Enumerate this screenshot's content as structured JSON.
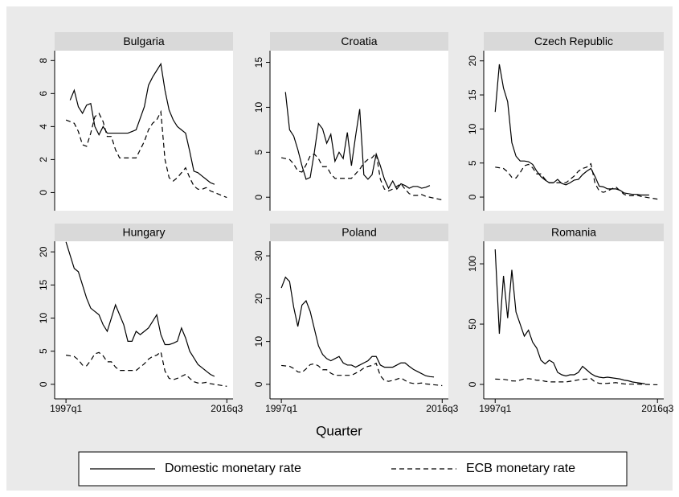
{
  "x_label": "Quarter",
  "chart_data": [
    {
      "type": "line",
      "title": "Bulgaria",
      "x": [
        148,
        150,
        152,
        154,
        156,
        158,
        160,
        162,
        164,
        166,
        168,
        170,
        172,
        174,
        176,
        178,
        180,
        182,
        184,
        186,
        188,
        190,
        192,
        194,
        196,
        198,
        200,
        202,
        204,
        206,
        208,
        210,
        212,
        214,
        216,
        218,
        220,
        222,
        224,
        226
      ],
      "xlim": [
        142.5,
        229
      ],
      "ylim": [
        -1.1,
        8.6
      ],
      "yticks": [
        0,
        2,
        4,
        6,
        8
      ],
      "series": [
        {
          "name": "Domestic monetary rate",
          "color": "#000000",
          "dash": "solid",
          "values": [
            null,
            5.6,
            6.2,
            5.2,
            4.8,
            5.3,
            5.4,
            4.0,
            3.5,
            4.0,
            3.6,
            3.6,
            3.6,
            3.6,
            3.6,
            3.6,
            3.7,
            3.8,
            4.5,
            5.2,
            6.5,
            7.0,
            7.4,
            7.8,
            6.2,
            5.0,
            4.4,
            4.0,
            3.8,
            3.6,
            2.5,
            1.3,
            1.2,
            1.0,
            0.8,
            0.6,
            0.5,
            null,
            null,
            null
          ]
        },
        {
          "name": "ECB monetary rate",
          "color": "#000000",
          "dash": "dashed",
          "values": [
            4.4,
            4.3,
            4.2,
            3.7,
            2.9,
            2.8,
            3.6,
            4.6,
            4.8,
            4.3,
            3.4,
            3.4,
            2.6,
            2.1,
            2.1,
            2.1,
            2.1,
            2.1,
            2.6,
            3.1,
            3.8,
            4.2,
            4.4,
            4.9,
            2.0,
            0.9,
            0.7,
            0.9,
            1.2,
            1.5,
            0.9,
            0.4,
            0.2,
            0.2,
            0.3,
            0.1,
            0.0,
            -0.1,
            -0.2,
            -0.3
          ]
        }
      ]
    },
    {
      "type": "line",
      "title": "Croatia",
      "x": [
        148,
        150,
        152,
        154,
        156,
        158,
        160,
        162,
        164,
        166,
        168,
        170,
        172,
        174,
        176,
        178,
        180,
        182,
        184,
        186,
        188,
        190,
        192,
        194,
        196,
        198,
        200,
        202,
        204,
        206,
        208,
        210,
        212,
        214,
        216,
        218,
        220,
        222,
        224,
        226
      ],
      "xlim": [
        142.5,
        229
      ],
      "ylim": [
        -1.5,
        16.3
      ],
      "yticks": [
        0,
        5,
        10,
        15
      ],
      "series": [
        {
          "name": "Domestic monetary rate",
          "color": "#000000",
          "dash": "solid",
          "values": [
            null,
            11.7,
            7.5,
            6.8,
            5.3,
            3.5,
            2.0,
            2.2,
            5.0,
            8.2,
            7.6,
            6.0,
            7.0,
            4.0,
            5.0,
            4.3,
            7.2,
            3.5,
            6.8,
            9.8,
            2.5,
            2.0,
            2.5,
            4.8,
            3.5,
            2.0,
            1.0,
            1.8,
            0.9,
            1.5,
            1.3,
            1.0,
            1.2,
            1.2,
            1.0,
            1.1,
            1.3,
            null,
            null,
            null
          ]
        },
        {
          "name": "ECB monetary rate",
          "color": "#000000",
          "dash": "dashed",
          "values": [
            4.4,
            4.3,
            4.2,
            3.7,
            2.9,
            2.8,
            3.6,
            4.6,
            4.8,
            4.3,
            3.4,
            3.4,
            2.6,
            2.1,
            2.1,
            2.1,
            2.1,
            2.1,
            2.6,
            3.1,
            3.8,
            4.2,
            4.4,
            4.9,
            2.0,
            0.9,
            0.7,
            0.9,
            1.2,
            1.5,
            0.9,
            0.4,
            0.2,
            0.2,
            0.3,
            0.1,
            0.0,
            -0.1,
            -0.2,
            -0.3
          ]
        }
      ]
    },
    {
      "type": "line",
      "title": "Czech Republic",
      "x": [
        148,
        150,
        152,
        154,
        156,
        158,
        160,
        162,
        164,
        166,
        168,
        170,
        172,
        174,
        176,
        178,
        180,
        182,
        184,
        186,
        188,
        190,
        192,
        194,
        196,
        198,
        200,
        202,
        204,
        206,
        208,
        210,
        212,
        214,
        216,
        218,
        220,
        222,
        224,
        226
      ],
      "xlim": [
        142.5,
        229
      ],
      "ylim": [
        -2.0,
        21.5
      ],
      "yticks": [
        0,
        5,
        10,
        15,
        20
      ],
      "series": [
        {
          "name": "Domestic monetary rate",
          "color": "#000000",
          "dash": "solid",
          "values": [
            12.5,
            19.5,
            16.0,
            14.0,
            8.0,
            6.0,
            5.3,
            5.3,
            5.2,
            4.8,
            3.8,
            3.0,
            2.5,
            2.1,
            2.1,
            2.6,
            2.0,
            1.8,
            2.1,
            2.5,
            2.6,
            3.3,
            3.8,
            4.2,
            3.0,
            1.6,
            1.5,
            1.2,
            1.2,
            1.2,
            1.0,
            0.6,
            0.5,
            0.4,
            0.4,
            0.3,
            0.3,
            0.3,
            null,
            null
          ]
        },
        {
          "name": "ECB monetary rate",
          "color": "#000000",
          "dash": "dashed",
          "values": [
            4.4,
            4.3,
            4.2,
            3.7,
            2.9,
            2.8,
            3.6,
            4.6,
            4.8,
            4.3,
            3.4,
            3.4,
            2.6,
            2.1,
            2.1,
            2.1,
            2.1,
            2.1,
            2.6,
            3.1,
            3.8,
            4.2,
            4.4,
            4.9,
            2.0,
            0.9,
            0.7,
            0.9,
            1.2,
            1.5,
            0.9,
            0.4,
            0.2,
            0.2,
            0.3,
            0.1,
            0.0,
            -0.1,
            -0.2,
            -0.3
          ]
        }
      ]
    },
    {
      "type": "line",
      "title": "Hungary",
      "x": [
        148,
        150,
        152,
        154,
        156,
        158,
        160,
        162,
        164,
        166,
        168,
        170,
        172,
        174,
        176,
        178,
        180,
        182,
        184,
        186,
        188,
        190,
        192,
        194,
        196,
        198,
        200,
        202,
        204,
        206,
        208,
        210,
        212,
        214,
        216,
        218,
        220,
        222,
        224,
        226
      ],
      "xlim": [
        142.5,
        229
      ],
      "xticks": [
        {
          "value": 148,
          "label": "1997q1"
        },
        {
          "value": 226,
          "label": "2016q3"
        }
      ],
      "ylim": [
        -2.2,
        21.6
      ],
      "yticks": [
        0,
        5,
        10,
        15,
        20
      ],
      "series": [
        {
          "name": "Domestic monetary rate",
          "color": "#000000",
          "dash": "solid",
          "values": [
            21.5,
            19.5,
            17.5,
            17.0,
            15.0,
            13.0,
            11.5,
            11.0,
            10.5,
            9.0,
            8.0,
            10.0,
            12.0,
            10.5,
            9.0,
            6.5,
            6.5,
            8.0,
            7.5,
            8.0,
            8.5,
            9.5,
            10.5,
            7.5,
            6.0,
            6.0,
            6.2,
            6.5,
            8.5,
            7.0,
            5.0,
            4.0,
            3.0,
            2.5,
            2.0,
            1.5,
            1.2,
            null,
            null,
            null
          ]
        },
        {
          "name": "ECB monetary rate",
          "color": "#000000",
          "dash": "dashed",
          "values": [
            4.4,
            4.3,
            4.2,
            3.7,
            2.9,
            2.8,
            3.6,
            4.6,
            4.8,
            4.3,
            3.4,
            3.4,
            2.6,
            2.1,
            2.1,
            2.1,
            2.1,
            2.1,
            2.6,
            3.1,
            3.8,
            4.2,
            4.4,
            4.9,
            2.0,
            0.9,
            0.7,
            0.9,
            1.2,
            1.5,
            0.9,
            0.4,
            0.2,
            0.2,
            0.3,
            0.1,
            0.0,
            -0.1,
            -0.2,
            -0.3
          ]
        }
      ]
    },
    {
      "type": "line",
      "title": "Poland",
      "x": [
        148,
        150,
        152,
        154,
        156,
        158,
        160,
        162,
        164,
        166,
        168,
        170,
        172,
        174,
        176,
        178,
        180,
        182,
        184,
        186,
        188,
        190,
        192,
        194,
        196,
        198,
        200,
        202,
        204,
        206,
        208,
        210,
        212,
        214,
        216,
        218,
        220,
        222,
        224,
        226
      ],
      "xlim": [
        142.5,
        229
      ],
      "xticks": [
        {
          "value": 148,
          "label": "1997q1"
        },
        {
          "value": 226,
          "label": "2016q3"
        }
      ],
      "ylim": [
        -3.4,
        33.4
      ],
      "yticks": [
        0,
        10,
        20,
        30
      ],
      "series": [
        {
          "name": "Domestic monetary rate",
          "color": "#000000",
          "dash": "solid",
          "values": [
            22.5,
            25.0,
            24.0,
            18.0,
            13.5,
            18.5,
            19.5,
            17.0,
            13.0,
            9.0,
            7.0,
            6.0,
            5.5,
            6.0,
            6.5,
            5.0,
            4.5,
            4.5,
            4.0,
            4.5,
            5.0,
            5.5,
            6.5,
            6.5,
            4.5,
            4.0,
            4.0,
            4.0,
            4.5,
            5.0,
            5.0,
            4.2,
            3.5,
            3.0,
            2.5,
            2.0,
            1.8,
            1.7,
            null,
            null
          ]
        },
        {
          "name": "ECB monetary rate",
          "color": "#000000",
          "dash": "dashed",
          "values": [
            4.4,
            4.3,
            4.2,
            3.7,
            2.9,
            2.8,
            3.6,
            4.6,
            4.8,
            4.3,
            3.4,
            3.4,
            2.6,
            2.1,
            2.1,
            2.1,
            2.1,
            2.1,
            2.6,
            3.1,
            3.8,
            4.2,
            4.4,
            4.9,
            2.0,
            0.9,
            0.7,
            0.9,
            1.2,
            1.5,
            0.9,
            0.4,
            0.2,
            0.2,
            0.3,
            0.1,
            0.0,
            -0.1,
            -0.2,
            -0.3
          ]
        }
      ]
    },
    {
      "type": "line",
      "title": "Romania",
      "x": [
        148,
        150,
        152,
        154,
        156,
        158,
        160,
        162,
        164,
        166,
        168,
        170,
        172,
        174,
        176,
        178,
        180,
        182,
        184,
        186,
        188,
        190,
        192,
        194,
        196,
        198,
        200,
        202,
        204,
        206,
        208,
        210,
        212,
        214,
        216,
        218,
        220,
        222,
        224,
        226
      ],
      "xlim": [
        142.5,
        229
      ],
      "xticks": [
        {
          "value": 148,
          "label": "1997q1"
        },
        {
          "value": 226,
          "label": "2016q3"
        }
      ],
      "ylim": [
        -12,
        118.7
      ],
      "yticks": [
        0,
        50,
        100
      ],
      "series": [
        {
          "name": "Domestic monetary rate",
          "color": "#000000",
          "dash": "solid",
          "values": [
            112,
            42,
            90,
            55,
            95,
            60,
            50,
            40,
            45,
            35,
            30,
            20,
            17,
            20,
            18,
            10,
            8,
            7,
            8,
            8,
            10,
            15,
            12,
            9,
            7,
            6,
            5.5,
            6,
            5.5,
            5,
            4.5,
            3.5,
            3,
            2,
            1.5,
            1.0,
            0.5,
            null,
            null,
            null
          ]
        },
        {
          "name": "ECB monetary rate",
          "color": "#000000",
          "dash": "dashed",
          "values": [
            4.4,
            4.3,
            4.2,
            3.7,
            2.9,
            2.8,
            3.6,
            4.6,
            4.8,
            4.3,
            3.4,
            3.4,
            2.6,
            2.1,
            2.1,
            2.1,
            2.1,
            2.1,
            2.6,
            3.1,
            3.8,
            4.2,
            4.4,
            4.9,
            2.0,
            0.9,
            0.7,
            0.9,
            1.2,
            1.5,
            0.9,
            0.4,
            0.2,
            0.2,
            0.3,
            0.1,
            0.0,
            -0.1,
            -0.2,
            -0.3
          ]
        }
      ]
    }
  ]
}
